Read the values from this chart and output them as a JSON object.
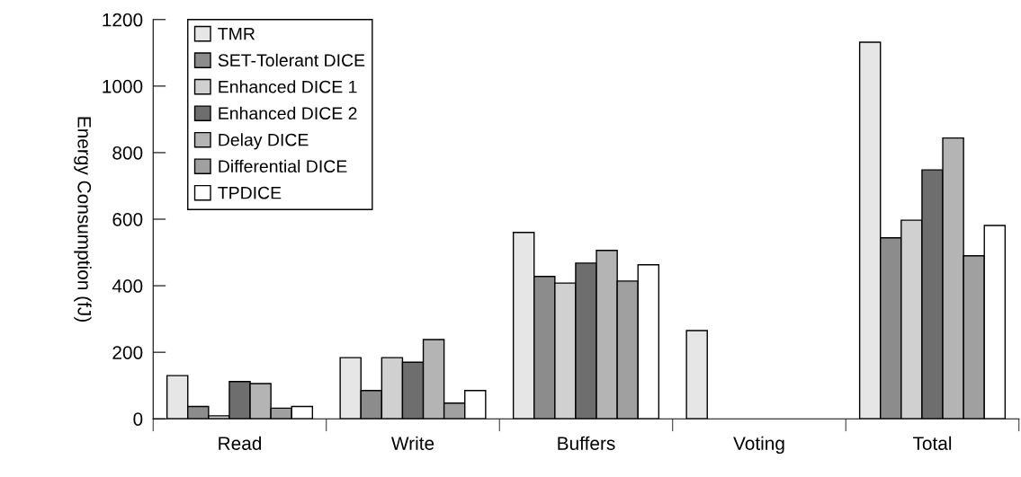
{
  "chart_data": {
    "type": "bar",
    "ylabel": "Energy Consumption (fJ)",
    "categories": [
      "Read",
      "Write",
      "Buffers",
      "Voting",
      "Total"
    ],
    "series": [
      {
        "name": "TMR",
        "color": "#e6e6e6",
        "values": [
          130,
          184,
          560,
          265,
          1132
        ]
      },
      {
        "name": "SET-Tolerant DICE",
        "color": "#8c8c8c",
        "values": [
          37,
          85,
          428,
          null,
          544
        ]
      },
      {
        "name": "Enhanced DICE 1",
        "color": "#d0d0d0",
        "values": [
          9,
          184,
          408,
          null,
          597
        ]
      },
      {
        "name": "Enhanced DICE 2",
        "color": "#6e6e6e",
        "values": [
          112,
          170,
          468,
          null,
          748
        ]
      },
      {
        "name": "Delay DICE",
        "color": "#b4b4b4",
        "values": [
          106,
          238,
          506,
          null,
          844
        ]
      },
      {
        "name": "Differential DICE",
        "color": "#a0a0a0",
        "values": [
          32,
          47,
          414,
          null,
          490
        ]
      },
      {
        "name": "TPDICE",
        "color": "#ffffff",
        "values": [
          37,
          85,
          463,
          null,
          581
        ]
      }
    ],
    "ylim": [
      0,
      1200
    ],
    "yticks": [
      0,
      200,
      400,
      600,
      800,
      1000,
      1200
    ],
    "grid": false,
    "legend": "top left"
  }
}
